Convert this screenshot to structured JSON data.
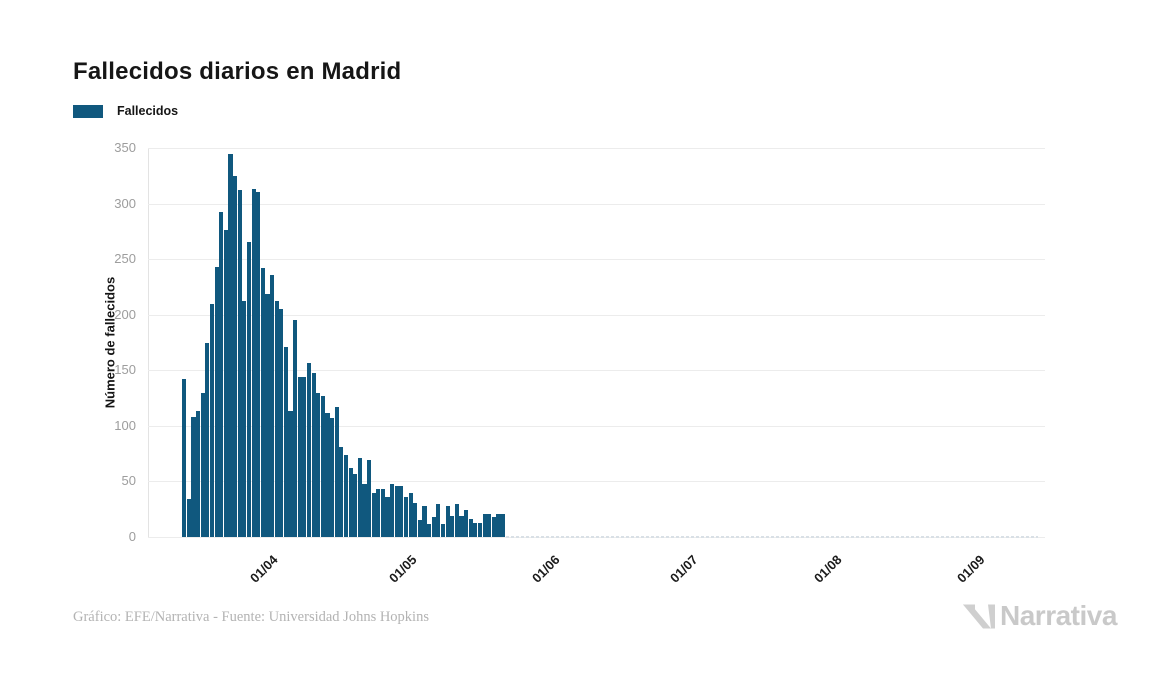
{
  "header": {
    "title": "Fallecidos diarios en Madrid"
  },
  "legend": {
    "label": "Fallecidos",
    "swatch_color": "#10587E"
  },
  "chart_data": {
    "type": "bar",
    "title": "Fallecidos diarios en Madrid",
    "xlabel": "",
    "ylabel": "Número de fallecidos",
    "series_name": "Fallecidos",
    "bar_color": "#10587E",
    "grid": true,
    "legend_position": "top-left",
    "ylim": [
      0,
      350
    ],
    "yticks": [
      0,
      50,
      100,
      150,
      200,
      250,
      300,
      350
    ],
    "xticks": [
      "01/04",
      "01/05",
      "01/06",
      "01/07",
      "01/08",
      "01/09"
    ],
    "dates": [
      "13/03",
      "14/03",
      "15/03",
      "16/03",
      "17/03",
      "18/03",
      "19/03",
      "20/03",
      "21/03",
      "22/03",
      "23/03",
      "24/03",
      "25/03",
      "26/03",
      "27/03",
      "28/03",
      "29/03",
      "30/03",
      "31/03",
      "01/04",
      "02/04",
      "03/04",
      "04/04",
      "05/04",
      "06/04",
      "07/04",
      "08/04",
      "09/04",
      "10/04",
      "11/04",
      "12/04",
      "13/04",
      "14/04",
      "15/04",
      "16/04",
      "17/04",
      "18/04",
      "19/04",
      "20/04",
      "21/04",
      "22/04",
      "23/04",
      "24/04",
      "25/04",
      "26/04",
      "27/04",
      "28/04",
      "29/04",
      "30/04",
      "01/05",
      "02/05",
      "03/05",
      "04/05",
      "05/05",
      "06/05",
      "07/05",
      "08/05",
      "09/05",
      "10/05",
      "11/05",
      "12/05",
      "13/05",
      "14/05",
      "15/05",
      "16/05",
      "17/05",
      "18/05",
      "19/05",
      "20/05",
      "21/05"
    ],
    "values": [
      142,
      34,
      108,
      113,
      130,
      175,
      210,
      243,
      292,
      276,
      345,
      325,
      312,
      212,
      265,
      313,
      310,
      242,
      219,
      236,
      212,
      205,
      171,
      113,
      195,
      144,
      144,
      157,
      148,
      130,
      127,
      112,
      107,
      117,
      81,
      74,
      62,
      57,
      71,
      48,
      69,
      40,
      43,
      43,
      36,
      48,
      46,
      46,
      36,
      40,
      31,
      15,
      28,
      12,
      18,
      30,
      12,
      28,
      19,
      30,
      19,
      24,
      16,
      13,
      13,
      21,
      21,
      18,
      21,
      21
    ],
    "zero_tail": {
      "from": "22/05",
      "to": "13/09",
      "value": 0
    }
  },
  "footer": {
    "attribution": "Gráfico: EFE/Narrativa - Fuente: Universidad Johns Hopkins",
    "brand": "Narrativa"
  }
}
